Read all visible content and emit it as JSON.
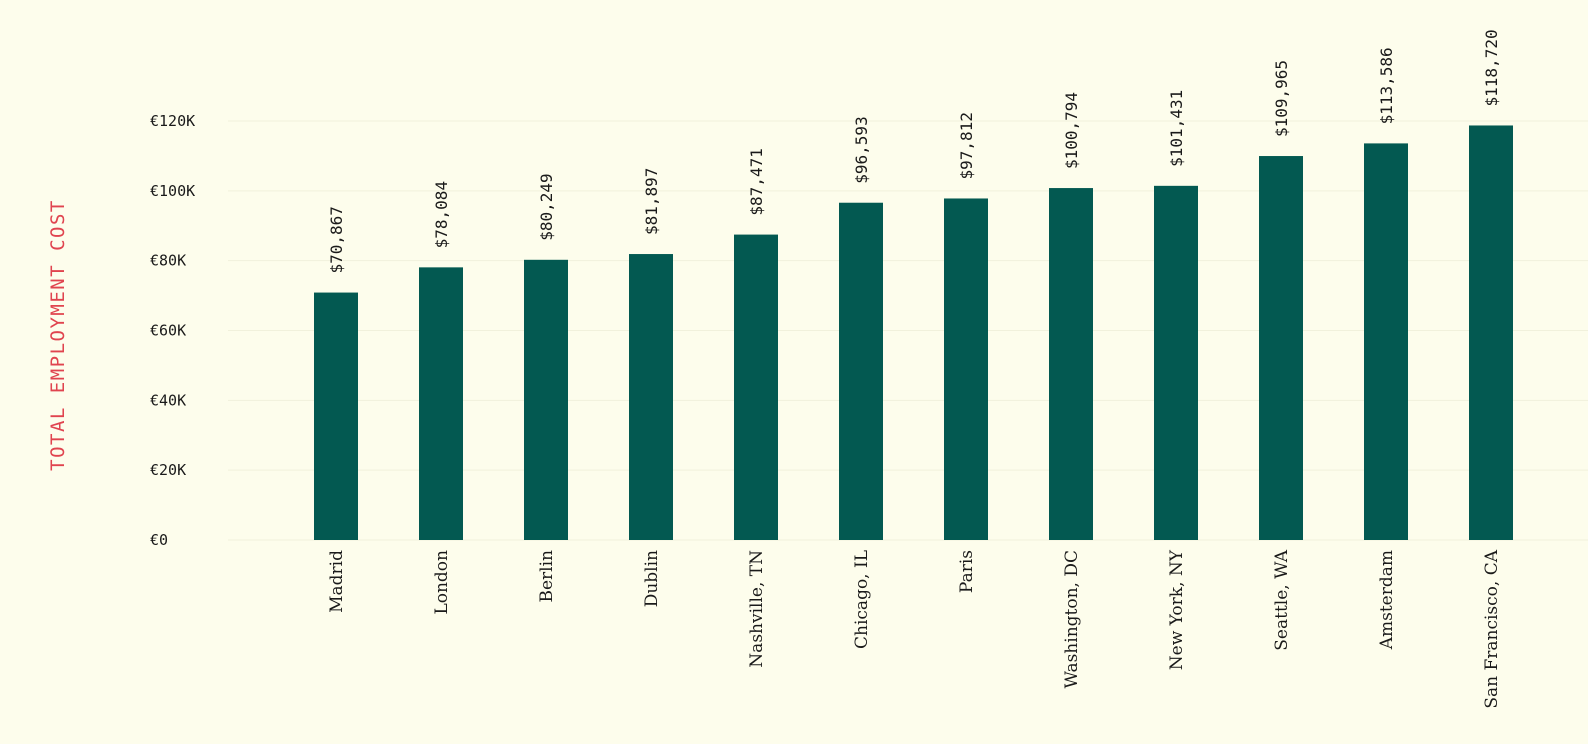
{
  "chart_data": {
    "type": "bar",
    "ylabel": "TOTAL EMPLOYMENT COST",
    "xlabel": "",
    "categories": [
      "Madrid",
      "London",
      "Berlin",
      "Dublin",
      "Nashville, TN",
      "Chicago, IL",
      "Paris",
      "Washington, DC",
      "New York, NY",
      "Seattle, WA",
      "Amsterdam",
      "San Francisco, CA"
    ],
    "values": [
      70867,
      78084,
      80249,
      81897,
      87471,
      96593,
      97812,
      100794,
      101431,
      109965,
      113586,
      118720
    ],
    "data_labels": [
      "$70,867",
      "$78,084",
      "$80,249",
      "$81,897",
      "$87,471",
      "$96,593",
      "$97,812",
      "$100,794",
      "$101,431",
      "$109,965",
      "$113,586",
      "$118,720"
    ],
    "ylim": [
      0,
      120000
    ],
    "yticks": [
      0,
      20000,
      40000,
      60000,
      80000,
      100000,
      120000
    ],
    "ytick_labels": [
      "€0",
      "€20K",
      "€40K",
      "€60K",
      "€80K",
      "€100K",
      "€120K"
    ],
    "grid": true,
    "legend": "none",
    "colors": {
      "bar": "#035951",
      "ylabel": "#e0444f",
      "text": "#1a1a1a",
      "grid": "#f1f1dc",
      "background": "#fdfdec"
    }
  }
}
